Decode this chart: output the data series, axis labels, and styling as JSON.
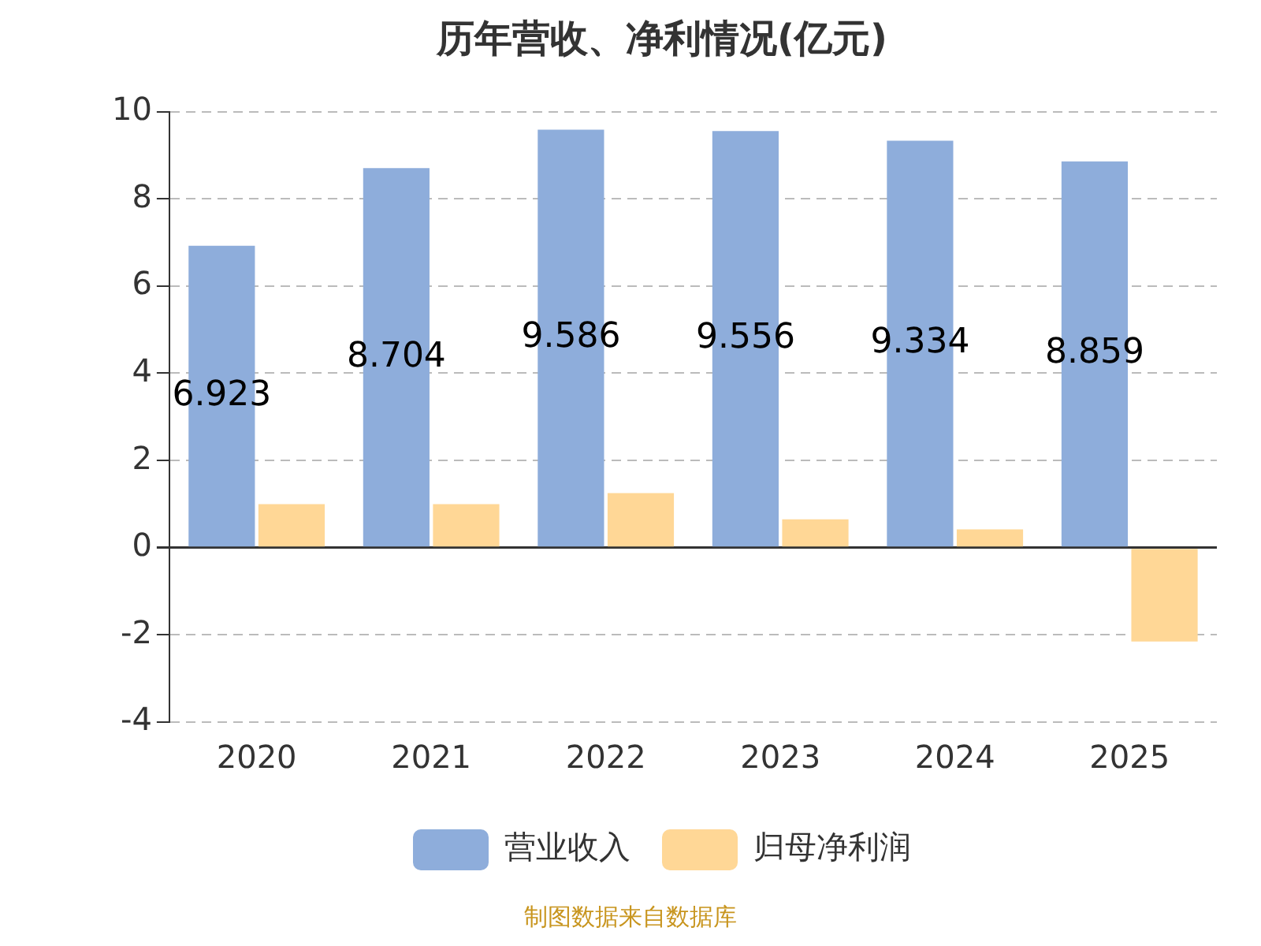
{
  "chart_data": {
    "type": "bar",
    "title": "历年营收、净利情况(亿元)",
    "categories": [
      "2020",
      "2021",
      "2022",
      "2023",
      "2024",
      "2025"
    ],
    "series": [
      {
        "name": "营业收入",
        "color": "#8eaddb",
        "values": [
          6.923,
          8.704,
          9.586,
          9.556,
          9.334,
          8.859
        ],
        "value_labels": [
          "6.923",
          "8.704",
          "9.586",
          "9.556",
          "9.334",
          "8.859"
        ]
      },
      {
        "name": "归母净利润",
        "color": "#ffd796",
        "values": [
          1.0,
          1.0,
          1.25,
          0.65,
          0.42,
          -2.15
        ]
      }
    ],
    "ylim": [
      -4,
      10
    ],
    "yticks": [
      -4,
      -2,
      0,
      2,
      4,
      6,
      8,
      10
    ],
    "grid": "y",
    "legend": "bottom",
    "annotations": [
      "制图数据来自数据库"
    ]
  }
}
